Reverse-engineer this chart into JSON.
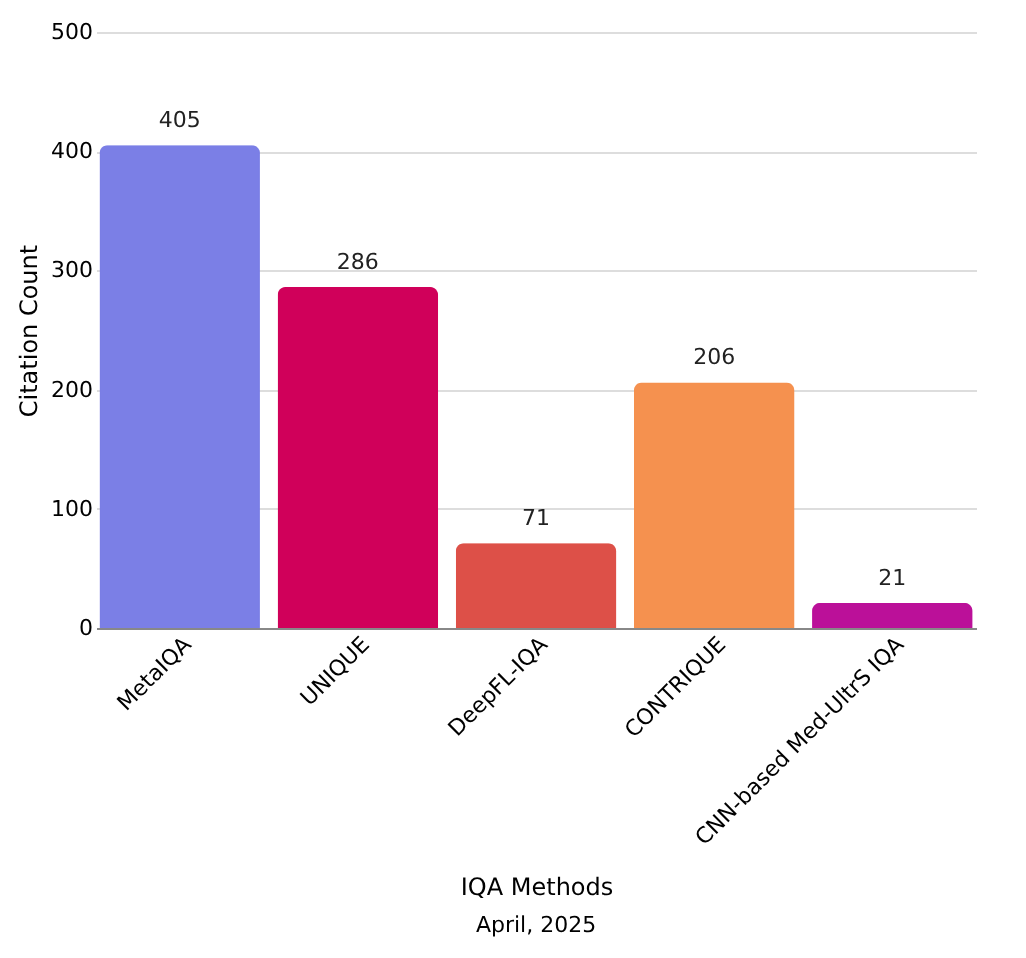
{
  "chart_data": {
    "type": "bar",
    "xlabel": "IQA Methods",
    "ylabel": "Citation Count",
    "categories": [
      "MetaIQA",
      "UNIQUE",
      "DeepFL-IQA",
      "CONTRIQUE",
      "CNN-based Med-UltrS IQA"
    ],
    "values": [
      405,
      286,
      71,
      206,
      21
    ],
    "colors": [
      "#7b7fe6",
      "#d0005a",
      "#dd5048",
      "#f5914f",
      "#bb1099"
    ],
    "ylim": [
      0,
      500
    ],
    "yticks": [
      0,
      100,
      200,
      300,
      400,
      500
    ],
    "grid": "y",
    "data_labels": true,
    "annotations": [
      "April, 2025"
    ]
  }
}
